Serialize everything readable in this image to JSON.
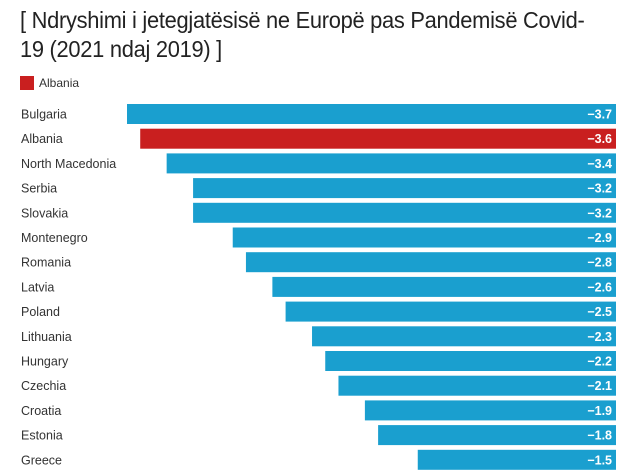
{
  "chart_data": {
    "type": "bar",
    "orientation": "horizontal",
    "title": "[ Ndryshimi i jetegjatësisë ne Europë pas Pandemisë Covid-19 (2021 ndaj 2019) ]",
    "legend": [
      {
        "label": "Albania",
        "color": "#c91f1f"
      }
    ],
    "legend_position": "top-left",
    "categories": [
      "Bulgaria",
      "Albania",
      "North Macedonia",
      "Serbia",
      "Slovakia",
      "Montenegro",
      "Romania",
      "Latvia",
      "Poland",
      "Lithuania",
      "Hungary",
      "Czechia",
      "Croatia",
      "Estonia",
      "Greece"
    ],
    "values": [
      -3.7,
      -3.6,
      -3.4,
      -3.2,
      -3.2,
      -2.9,
      -2.8,
      -2.6,
      -2.5,
      -2.3,
      -2.2,
      -2.1,
      -1.9,
      -1.8,
      -1.5
    ],
    "value_labels": [
      "−3.7",
      "−3.6",
      "−3.4",
      "−3.2",
      "−3.2",
      "−2.9",
      "−2.8",
      "−2.6",
      "−2.5",
      "−2.3",
      "−2.2",
      "−2.1",
      "−1.9",
      "−1.8",
      "−1.5"
    ],
    "highlight": "Albania",
    "colors": {
      "default": "#1a9fcf",
      "highlight": "#c91f1f"
    },
    "xlim": [
      -3.7,
      0
    ],
    "grid": false,
    "xlabel": "",
    "ylabel": ""
  }
}
